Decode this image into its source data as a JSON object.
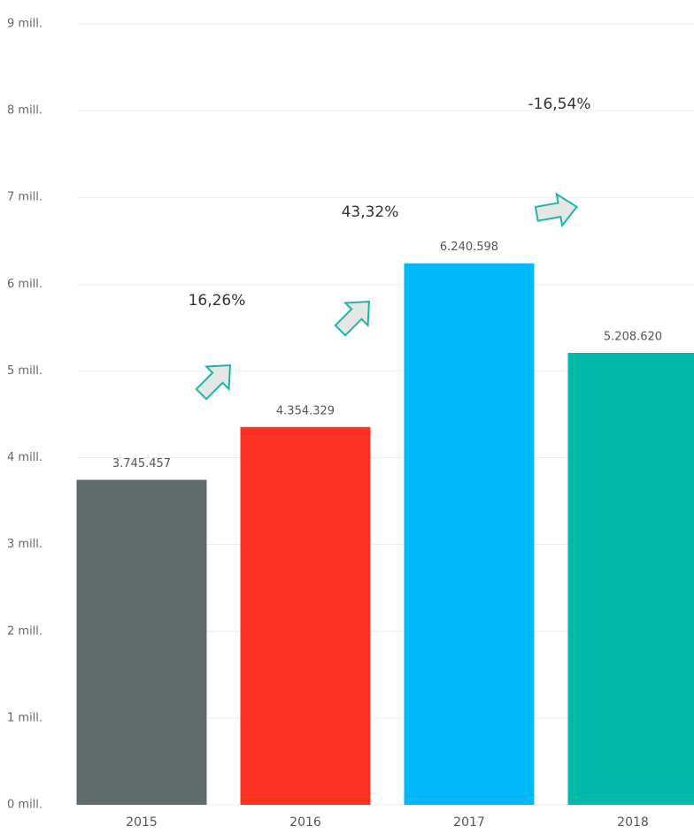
{
  "chart_data": {
    "type": "bar",
    "categories": [
      "2015",
      "2016",
      "2017",
      "2018"
    ],
    "values": [
      3745457,
      4354329,
      6240598,
      5208620
    ],
    "value_labels": [
      "3.745.457",
      "4.354.329",
      "6.240.598",
      "5.208.620"
    ],
    "colors": [
      "#5f6a6a",
      "#fd3122",
      "#01b8fa",
      "#01b8a9"
    ],
    "ylim": [
      0,
      9000000
    ],
    "yticks": [
      {
        "value": 0,
        "label": "0 mill."
      },
      {
        "value": 1000000,
        "label": "1 mill."
      },
      {
        "value": 2000000,
        "label": "2 mill."
      },
      {
        "value": 3000000,
        "label": "3 mill."
      },
      {
        "value": 4000000,
        "label": "4 mill."
      },
      {
        "value": 5000000,
        "label": "5 mill."
      },
      {
        "value": 6000000,
        "label": "6 mill."
      },
      {
        "value": 7000000,
        "label": "7 mill."
      },
      {
        "value": 8000000,
        "label": "8 mill."
      },
      {
        "value": 9000000,
        "label": "9 mill."
      }
    ],
    "grid": true,
    "annotations": [
      {
        "text": "16,26%"
      },
      {
        "text": "43,32%"
      },
      {
        "text": "-16,54%"
      }
    ]
  }
}
